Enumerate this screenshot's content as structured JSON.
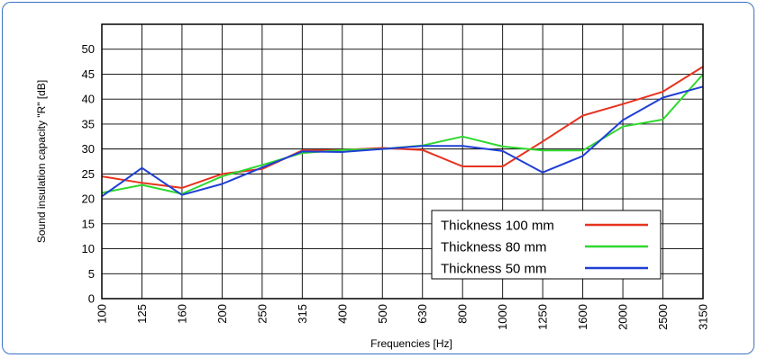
{
  "chart_data": {
    "type": "line",
    "xlabel": "Frequencies [Hz]",
    "ylabel": "Sound insulation capacity \"R\" [dB]",
    "categories": [
      "100",
      "125",
      "160",
      "200",
      "250",
      "315",
      "400",
      "500",
      "630",
      "800",
      "1000",
      "1250",
      "1600",
      "2000",
      "2500",
      "3150"
    ],
    "ylim": [
      0,
      55
    ],
    "yticks": [
      0,
      5,
      10,
      15,
      20,
      25,
      30,
      35,
      40,
      45,
      50
    ],
    "grid": true,
    "legend_position": "bottom-right",
    "series": [
      {
        "name": "Thickness 100 mm",
        "color": "#e8321e",
        "values": [
          24.5,
          23.2,
          22.2,
          25,
          26,
          29.7,
          29.8,
          30.2,
          29.8,
          26.5,
          26.5,
          31.5,
          36.7,
          39,
          41.5,
          46.5
        ]
      },
      {
        "name": "Thickness  80 mm",
        "color": "#2ed82e",
        "values": [
          21.2,
          22.8,
          21,
          24.5,
          26.8,
          29.2,
          29.8,
          30,
          30.7,
          32.5,
          30.5,
          29.7,
          29.7,
          34.5,
          35.9,
          45
        ]
      },
      {
        "name": "Thickness  50 mm",
        "color": "#1f3fd6",
        "values": [
          20.5,
          26.2,
          20.8,
          23,
          26.3,
          29.5,
          29.4,
          30,
          30.6,
          30.6,
          29.6,
          25.3,
          28.6,
          35.8,
          40.3,
          42.5
        ]
      }
    ]
  }
}
